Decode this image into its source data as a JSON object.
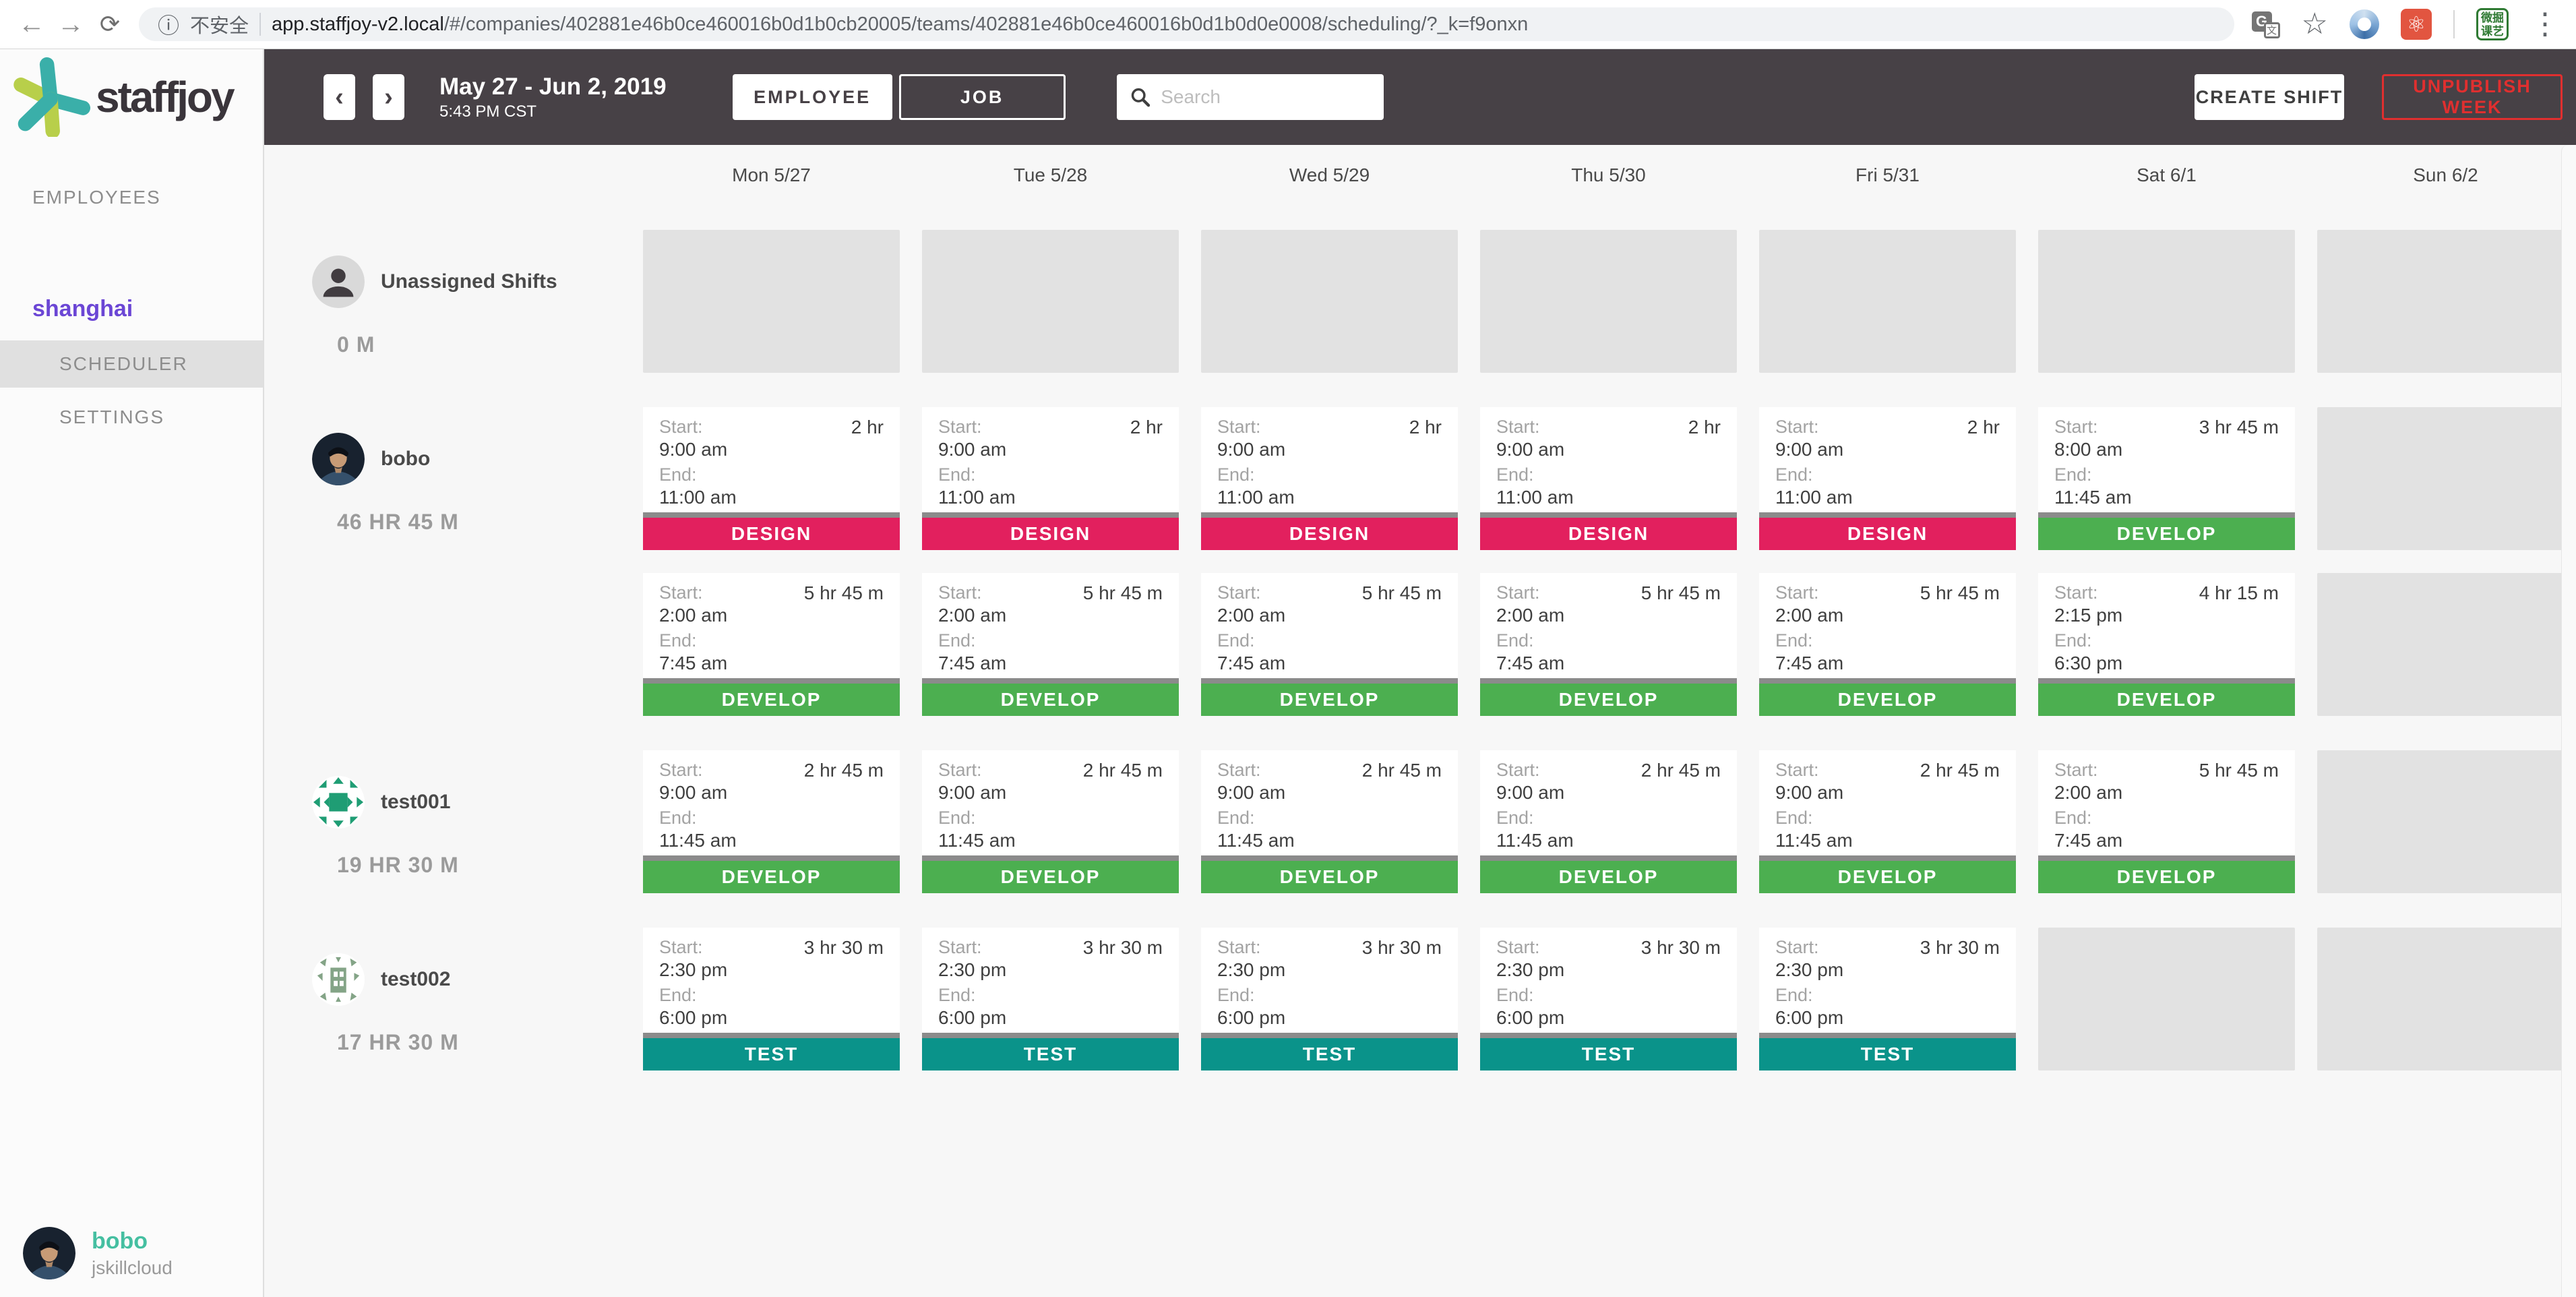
{
  "browser": {
    "back_icon": "←",
    "forward_icon": "→",
    "reload_icon": "⟳",
    "insecure_label": "不安全",
    "url_domain": "app.staffjoy-v2.local",
    "url_path": "/#/companies/402881e46b0ce460016b0d1b0cb20005/teams/402881e46b0ce460016b0d1b0d0e0008/scheduling/?_k=f9onxn",
    "ext_badge_line1": "微掘",
    "ext_badge_line2": "课艺"
  },
  "sidebar": {
    "logo_text": "staffjoy",
    "employees_label": "EMPLOYEES",
    "team_label": "shanghai",
    "scheduler_label": "SCHEDULER",
    "settings_label": "SETTINGS",
    "user_name": "bobo",
    "user_handle": "jskillcloud",
    "accent_purple": "#6b46d5",
    "accent_teal": "#45bfa1"
  },
  "toolbar": {
    "prev_label": "‹",
    "next_label": "›",
    "date_range": "May 27 - Jun 2, 2019",
    "date_time": "5:43 PM CST",
    "employee_toggle": "EMPLOYEE",
    "job_toggle": "JOB",
    "search_placeholder": "Search",
    "create_shift_label": "CREATE SHIFT",
    "unpublish_label": "UNPUBLISH WEEK",
    "unpublish_color": "#e02f2f"
  },
  "job_colors": {
    "DESIGN": "#e2205e",
    "DEVELOP": "#4caf50",
    "TEST": "#0a938a"
  },
  "calendar": {
    "days": [
      "Mon 5/27",
      "Tue 5/28",
      "Wed 5/29",
      "Thu 5/30",
      "Fri 5/31",
      "Sat 6/1",
      "Sun 6/2"
    ],
    "start_label": "Start:",
    "end_label": "End:",
    "rows": [
      {
        "name": "Unassigned Shifts",
        "hours": "0 M",
        "avatar": "unassigned",
        "sub_rows": [
          [
            null,
            null,
            null,
            null,
            null,
            null,
            null
          ]
        ]
      },
      {
        "name": "bobo",
        "hours": "46 HR 45 M",
        "avatar": "photo",
        "sub_rows": [
          [
            {
              "duration": "2 hr",
              "start": "9:00 am",
              "end": "11:00 am",
              "job": "DESIGN"
            },
            {
              "duration": "2 hr",
              "start": "9:00 am",
              "end": "11:00 am",
              "job": "DESIGN"
            },
            {
              "duration": "2 hr",
              "start": "9:00 am",
              "end": "11:00 am",
              "job": "DESIGN"
            },
            {
              "duration": "2 hr",
              "start": "9:00 am",
              "end": "11:00 am",
              "job": "DESIGN"
            },
            {
              "duration": "2 hr",
              "start": "9:00 am",
              "end": "11:00 am",
              "job": "DESIGN"
            },
            {
              "duration": "3 hr 45 m",
              "start": "8:00 am",
              "end": "11:45 am",
              "job": "DEVELOP"
            },
            null
          ],
          [
            {
              "duration": "5 hr 45 m",
              "start": "2:00 am",
              "end": "7:45 am",
              "job": "DEVELOP"
            },
            {
              "duration": "5 hr 45 m",
              "start": "2:00 am",
              "end": "7:45 am",
              "job": "DEVELOP"
            },
            {
              "duration": "5 hr 45 m",
              "start": "2:00 am",
              "end": "7:45 am",
              "job": "DEVELOP"
            },
            {
              "duration": "5 hr 45 m",
              "start": "2:00 am",
              "end": "7:45 am",
              "job": "DEVELOP"
            },
            {
              "duration": "5 hr 45 m",
              "start": "2:00 am",
              "end": "7:45 am",
              "job": "DEVELOP"
            },
            {
              "duration": "4 hr 15 m",
              "start": "2:15 pm",
              "end": "6:30 pm",
              "job": "DEVELOP"
            },
            null
          ]
        ]
      },
      {
        "name": "test001",
        "hours": "19 HR 30 M",
        "avatar": "identicon1",
        "sub_rows": [
          [
            {
              "duration": "2 hr 45 m",
              "start": "9:00 am",
              "end": "11:45 am",
              "job": "DEVELOP"
            },
            {
              "duration": "2 hr 45 m",
              "start": "9:00 am",
              "end": "11:45 am",
              "job": "DEVELOP"
            },
            {
              "duration": "2 hr 45 m",
              "start": "9:00 am",
              "end": "11:45 am",
              "job": "DEVELOP"
            },
            {
              "duration": "2 hr 45 m",
              "start": "9:00 am",
              "end": "11:45 am",
              "job": "DEVELOP"
            },
            {
              "duration": "2 hr 45 m",
              "start": "9:00 am",
              "end": "11:45 am",
              "job": "DEVELOP"
            },
            {
              "duration": "5 hr 45 m",
              "start": "2:00 am",
              "end": "7:45 am",
              "job": "DEVELOP"
            },
            null
          ]
        ]
      },
      {
        "name": "test002",
        "hours": "17 HR 30 M",
        "avatar": "identicon2",
        "sub_rows": [
          [
            {
              "duration": "3 hr 30 m",
              "start": "2:30 pm",
              "end": "6:00 pm",
              "job": "TEST"
            },
            {
              "duration": "3 hr 30 m",
              "start": "2:30 pm",
              "end": "6:00 pm",
              "job": "TEST"
            },
            {
              "duration": "3 hr 30 m",
              "start": "2:30 pm",
              "end": "6:00 pm",
              "job": "TEST"
            },
            {
              "duration": "3 hr 30 m",
              "start": "2:30 pm",
              "end": "6:00 pm",
              "job": "TEST"
            },
            {
              "duration": "3 hr 30 m",
              "start": "2:30 pm",
              "end": "6:00 pm",
              "job": "TEST"
            },
            null,
            null
          ]
        ]
      }
    ]
  }
}
